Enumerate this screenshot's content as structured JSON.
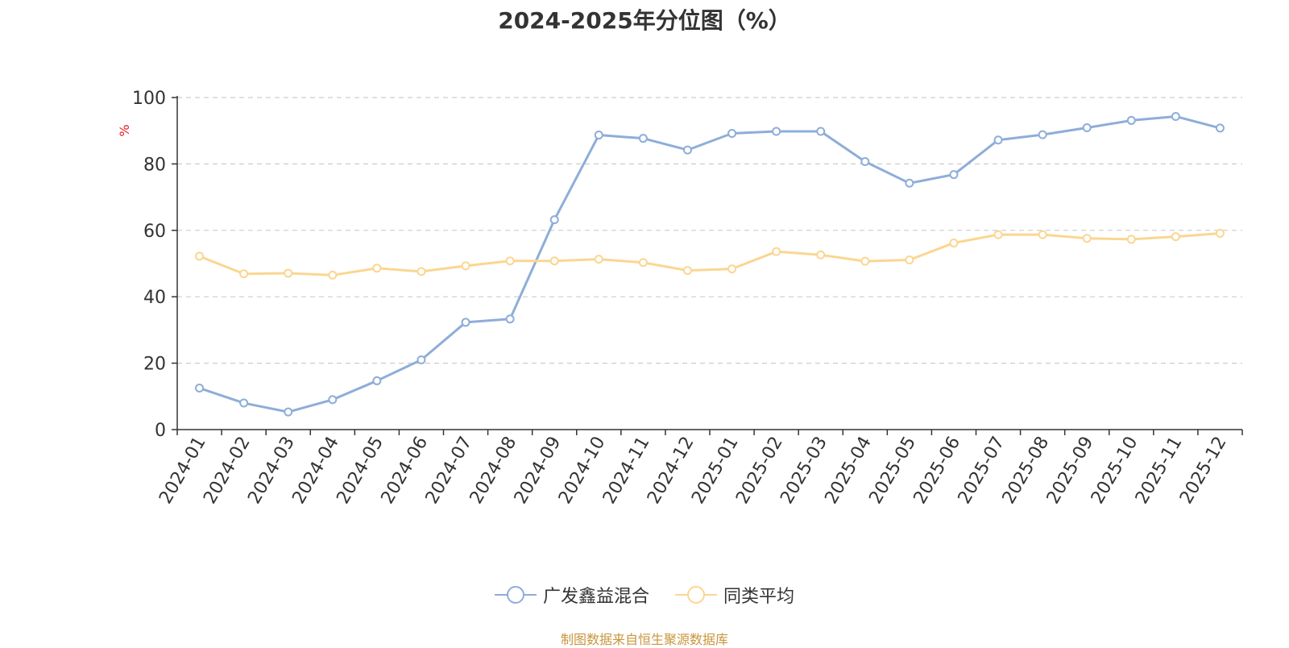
{
  "chart_data": {
    "type": "line",
    "title": "2024-2025年分位图（%）",
    "ylabel": "%",
    "ylim": [
      0,
      100
    ],
    "yticks": [
      0,
      20,
      40,
      60,
      80,
      100
    ],
    "grid": true,
    "legend_position": "bottom",
    "categories": [
      "2024-01",
      "2024-02",
      "2024-03",
      "2024-04",
      "2024-05",
      "2024-06",
      "2024-07",
      "2024-08",
      "2024-09",
      "2024-10",
      "2024-11",
      "2024-12",
      "2025-01",
      "2025-02",
      "2025-03",
      "2025-04",
      "2025-05",
      "2025-06",
      "2025-07",
      "2025-08",
      "2025-09",
      "2025-10",
      "2025-11",
      "2025-12"
    ],
    "series": [
      {
        "name": "广发鑫益混合",
        "color": "#8eadd9",
        "values": [
          12.5,
          8.0,
          5.3,
          9.0,
          14.7,
          21.0,
          32.3,
          33.3,
          63.2,
          88.7,
          87.7,
          84.2,
          89.2,
          89.8,
          89.8,
          80.7,
          74.2,
          76.8,
          87.2,
          88.8,
          90.9,
          93.1,
          94.3,
          90.8
        ]
      },
      {
        "name": "同类平均",
        "color": "#fbd691",
        "values": [
          52.2,
          46.9,
          47.1,
          46.5,
          48.6,
          47.6,
          49.3,
          50.8,
          50.8,
          51.3,
          50.3,
          47.9,
          48.4,
          53.6,
          52.6,
          50.7,
          51.1,
          56.2,
          58.7,
          58.7,
          57.6,
          57.3,
          58.1,
          59.1
        ]
      }
    ]
  },
  "source_note": "制图数据来自恒生聚源数据库"
}
